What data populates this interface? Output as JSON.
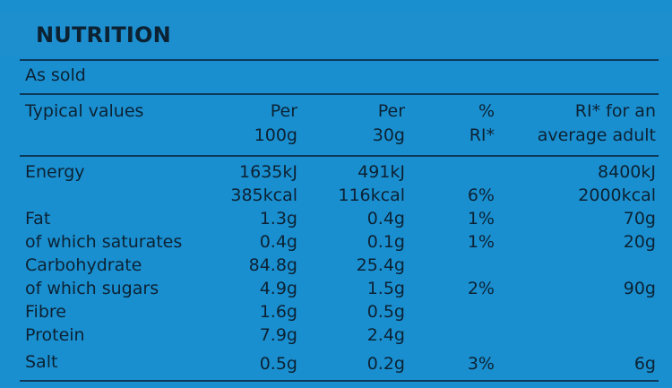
{
  "label": {
    "title": "NUTRITION",
    "subtitle": "As sold",
    "headers": {
      "typical": "Typical values",
      "per100_line1": "Per",
      "per100_line2": "100g",
      "per30_line1": "Per",
      "per30_line2": "30g",
      "ri_line1": "%",
      "ri_line2": "RI*",
      "adult_line1": "RI* for an",
      "adult_line2": "average adult"
    },
    "rows": [
      {
        "name": "Energy",
        "per100": "1635kJ",
        "per30": "491kJ",
        "ri": "",
        "adult": "8400kJ"
      },
      {
        "name": "",
        "per100": "385kcal",
        "per30": "116kcal",
        "ri": "6%",
        "adult": "2000kcal"
      },
      {
        "name": "Fat",
        "per100": "1.3g",
        "per30": "0.4g",
        "ri": "1%",
        "adult": "70g"
      },
      {
        "name": "of which saturates",
        "per100": "0.4g",
        "per30": "0.1g",
        "ri": "1%",
        "adult": "20g"
      },
      {
        "name": "Carbohydrate",
        "per100": "84.8g",
        "per30": "25.4g",
        "ri": "",
        "adult": ""
      },
      {
        "name": "of which sugars",
        "per100": "4.9g",
        "per30": "1.5g",
        "ri": "2%",
        "adult": "90g"
      },
      {
        "name": "Fibre",
        "per100": "1.6g",
        "per30": "0.5g",
        "ri": "",
        "adult": ""
      },
      {
        "name": "Protein",
        "per100": "7.9g",
        "per30": "2.4g",
        "ri": "",
        "adult": ""
      },
      {
        "name": "Salt",
        "per100": "0.5g",
        "per30": "0.2g",
        "ri": "3%",
        "adult": "6g"
      }
    ]
  }
}
